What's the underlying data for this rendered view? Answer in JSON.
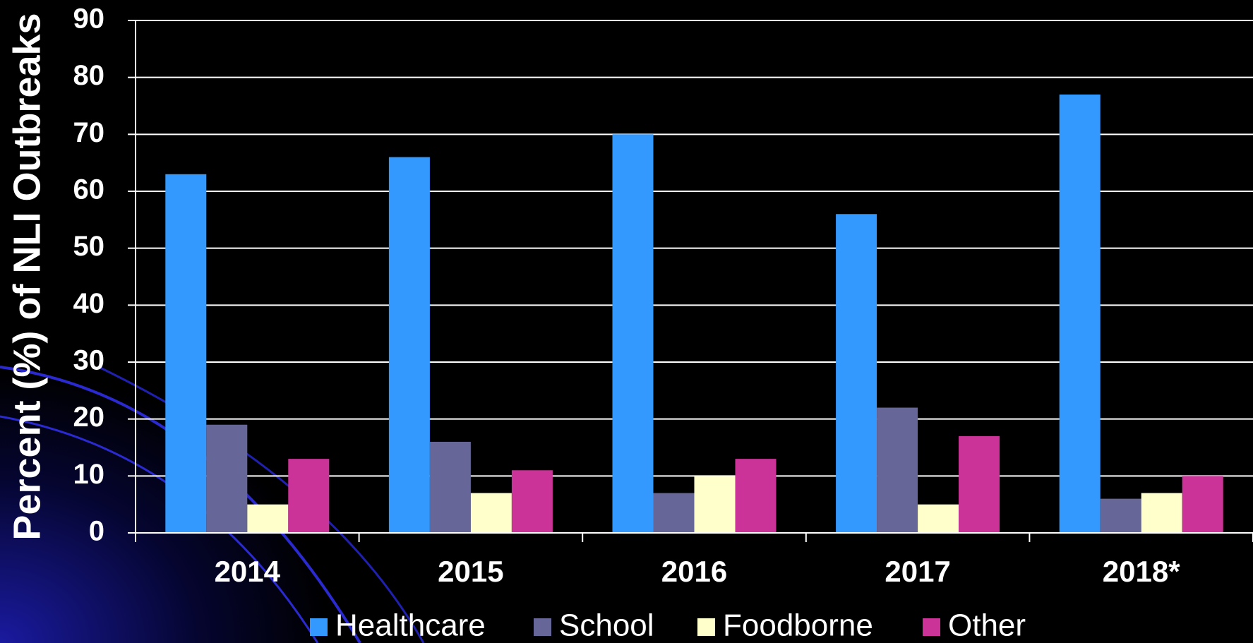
{
  "chart_data": {
    "type": "bar",
    "y_label": "Percent (%) of NLI Outbreaks",
    "categories": [
      "2014",
      "2015",
      "2016",
      "2017",
      "2018*"
    ],
    "series": [
      {
        "name": "Healthcare",
        "color": "#3399ff",
        "values": [
          63,
          66,
          70,
          56,
          77
        ]
      },
      {
        "name": "School",
        "color": "#666699",
        "values": [
          19,
          16,
          7,
          22,
          6
        ]
      },
      {
        "name": "Foodborne",
        "color": "#ffffcc",
        "values": [
          5,
          7,
          10,
          5,
          7
        ]
      },
      {
        "name": "Other",
        "color": "#cc3399",
        "values": [
          13,
          11,
          13,
          17,
          10
        ]
      }
    ],
    "ylim": [
      0,
      90
    ],
    "yticks": [
      0,
      10,
      20,
      30,
      40,
      50,
      60,
      70,
      80,
      90
    ],
    "grid": true,
    "legend": "bottom"
  }
}
